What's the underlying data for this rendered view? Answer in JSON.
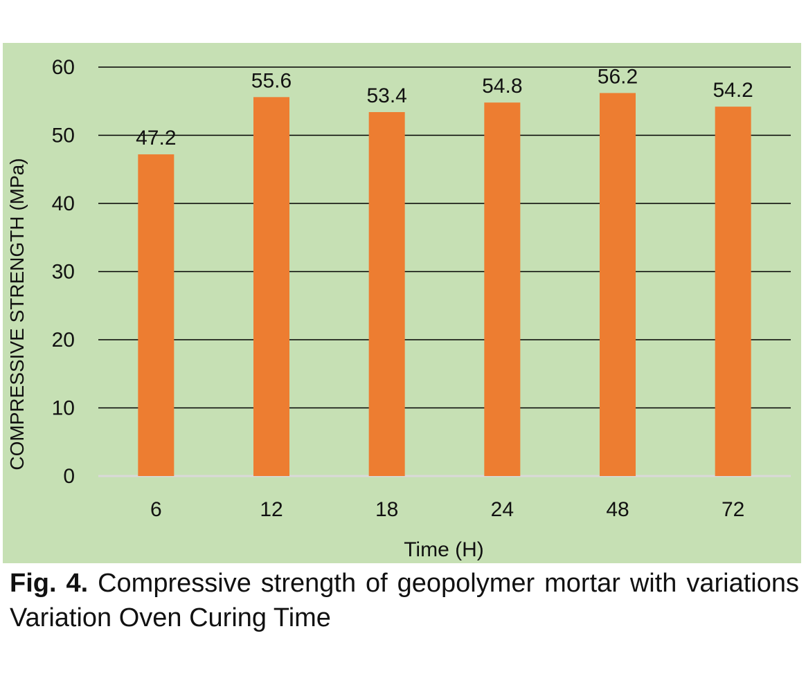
{
  "chart_data": {
    "type": "bar",
    "categories": [
      "6",
      "12",
      "18",
      "24",
      "48",
      "72"
    ],
    "values": [
      47.2,
      55.6,
      53.4,
      54.8,
      56.2,
      54.2
    ],
    "data_labels": [
      "47.2",
      "55.6",
      "53.4",
      "54.8",
      "56.2",
      "54.2"
    ],
    "title": "",
    "xlabel": "Time (H)",
    "ylabel": "COMPRESSIVE STRENGTH (MPa)",
    "ylim": [
      0,
      60
    ],
    "yticks": [
      0,
      10,
      20,
      30,
      40,
      50,
      60
    ],
    "grid": true,
    "legend": "none",
    "colors": {
      "background": "#c6e0b4",
      "bar": "#ed7d31",
      "gridline": "#000000",
      "baseline": "#d9d9d9"
    }
  },
  "caption": {
    "label": "Fig. 4.",
    "text": "Compressive strength of geopolymer mortar with variations Variation Oven Curing Time"
  }
}
